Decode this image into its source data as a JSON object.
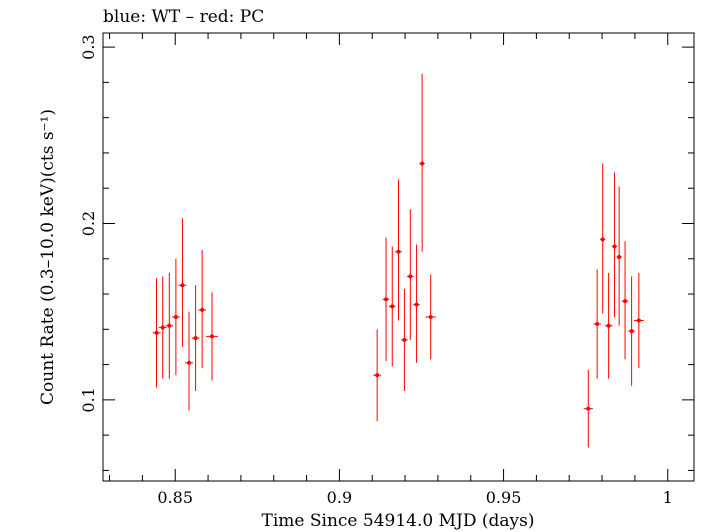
{
  "chart_data": {
    "type": "scatter",
    "title": "blue: WT – red: PC",
    "xlabel": "Time Since 54914.0 MJD (days)",
    "ylabel": "Count Rate (0.3–10.0 keV)(cts s⁻¹)",
    "xlim": [
      0.828,
      1.008
    ],
    "ylim": [
      0.054,
      0.308
    ],
    "x_ticks": [
      0.85,
      0.9,
      0.95,
      1.0
    ],
    "x_tick_labels": [
      "0.85",
      "0.9",
      "0.95",
      "1"
    ],
    "y_ticks": [
      0.1,
      0.2,
      0.3
    ],
    "y_tick_labels": [
      "0.1",
      "0.2",
      "0.3"
    ],
    "grid": false,
    "series": [
      {
        "color": "#ff0000",
        "points": [
          {
            "x": 0.8443,
            "y": 0.138,
            "xerr": 0.0012,
            "yerr_lo": 0.031,
            "yerr_hi": 0.031
          },
          {
            "x": 0.8462,
            "y": 0.141,
            "xerr": 0.0012,
            "yerr_lo": 0.029,
            "yerr_hi": 0.029
          },
          {
            "x": 0.8482,
            "y": 0.142,
            "xerr": 0.0012,
            "yerr_lo": 0.03,
            "yerr_hi": 0.03
          },
          {
            "x": 0.8502,
            "y": 0.147,
            "xerr": 0.0012,
            "yerr_lo": 0.033,
            "yerr_hi": 0.033
          },
          {
            "x": 0.8522,
            "y": 0.165,
            "xerr": 0.0012,
            "yerr_lo": 0.035,
            "yerr_hi": 0.038
          },
          {
            "x": 0.8542,
            "y": 0.121,
            "xerr": 0.0012,
            "yerr_lo": 0.027,
            "yerr_hi": 0.029
          },
          {
            "x": 0.8562,
            "y": 0.135,
            "xerr": 0.0012,
            "yerr_lo": 0.03,
            "yerr_hi": 0.03
          },
          {
            "x": 0.8582,
            "y": 0.151,
            "xerr": 0.0012,
            "yerr_lo": 0.033,
            "yerr_hi": 0.034
          },
          {
            "x": 0.8612,
            "y": 0.136,
            "xerr": 0.0018,
            "yerr_lo": 0.025,
            "yerr_hi": 0.025
          },
          {
            "x": 0.9115,
            "y": 0.114,
            "xerr": 0.0012,
            "yerr_lo": 0.026,
            "yerr_hi": 0.026
          },
          {
            "x": 0.9142,
            "y": 0.157,
            "xerr": 0.001,
            "yerr_lo": 0.035,
            "yerr_hi": 0.035
          },
          {
            "x": 0.9161,
            "y": 0.153,
            "xerr": 0.001,
            "yerr_lo": 0.034,
            "yerr_hi": 0.034
          },
          {
            "x": 0.918,
            "y": 0.184,
            "xerr": 0.001,
            "yerr_lo": 0.039,
            "yerr_hi": 0.041
          },
          {
            "x": 0.9198,
            "y": 0.134,
            "xerr": 0.001,
            "yerr_lo": 0.029,
            "yerr_hi": 0.029
          },
          {
            "x": 0.9216,
            "y": 0.17,
            "xerr": 0.001,
            "yerr_lo": 0.036,
            "yerr_hi": 0.038
          },
          {
            "x": 0.9235,
            "y": 0.154,
            "xerr": 0.001,
            "yerr_lo": 0.033,
            "yerr_hi": 0.034
          },
          {
            "x": 0.9252,
            "y": 0.234,
            "xerr": 0.0008,
            "yerr_lo": 0.05,
            "yerr_hi": 0.051
          },
          {
            "x": 0.9278,
            "y": 0.147,
            "xerr": 0.0016,
            "yerr_lo": 0.024,
            "yerr_hi": 0.024
          },
          {
            "x": 0.9758,
            "y": 0.095,
            "xerr": 0.0014,
            "yerr_lo": 0.022,
            "yerr_hi": 0.022
          },
          {
            "x": 0.9785,
            "y": 0.143,
            "xerr": 0.0012,
            "yerr_lo": 0.031,
            "yerr_hi": 0.031
          },
          {
            "x": 0.9802,
            "y": 0.191,
            "xerr": 0.0008,
            "yerr_lo": 0.042,
            "yerr_hi": 0.043
          },
          {
            "x": 0.982,
            "y": 0.142,
            "xerr": 0.0012,
            "yerr_lo": 0.03,
            "yerr_hi": 0.03
          },
          {
            "x": 0.9838,
            "y": 0.187,
            "xerr": 0.0008,
            "yerr_lo": 0.04,
            "yerr_hi": 0.042
          },
          {
            "x": 0.9852,
            "y": 0.181,
            "xerr": 0.0008,
            "yerr_lo": 0.039,
            "yerr_hi": 0.04
          },
          {
            "x": 0.987,
            "y": 0.156,
            "xerr": 0.001,
            "yerr_lo": 0.033,
            "yerr_hi": 0.034
          },
          {
            "x": 0.989,
            "y": 0.139,
            "xerr": 0.001,
            "yerr_lo": 0.031,
            "yerr_hi": 0.031
          },
          {
            "x": 0.9912,
            "y": 0.145,
            "xerr": 0.0015,
            "yerr_lo": 0.027,
            "yerr_hi": 0.027
          }
        ]
      }
    ]
  }
}
